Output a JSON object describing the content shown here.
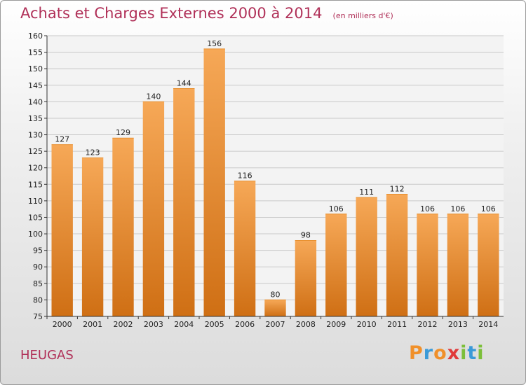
{
  "title": {
    "main": "Achats et Charges Externes 2000 à 2014",
    "sub": "(en milliers d'€)"
  },
  "commune": "HEUGAS",
  "logo": {
    "letters": [
      "P",
      "r",
      "o",
      "x",
      "i",
      "t",
      "i"
    ],
    "colors": [
      "#f0902a",
      "#3a9ad8",
      "#f0902a",
      "#e03a3a",
      "#7cbf3a",
      "#3a9ad8",
      "#7cbf3a"
    ]
  },
  "colors": {
    "bar_light": "#f6a857",
    "bar_dark": "#cf6f14",
    "grid": "#c9c9c9",
    "title": "#b03058"
  },
  "chart_data": {
    "type": "bar",
    "categories": [
      "2000",
      "2001",
      "2002",
      "2003",
      "2004",
      "2005",
      "2006",
      "2007",
      "2008",
      "2009",
      "2010",
      "2011",
      "2012",
      "2013",
      "2014"
    ],
    "values": [
      127,
      123,
      129,
      140,
      144,
      156,
      116,
      80,
      98,
      106,
      111,
      112,
      106,
      106,
      106
    ],
    "title": "Achats et Charges Externes 2000 à 2014",
    "xlabel": "",
    "ylabel": "",
    "ylim": [
      75,
      160
    ],
    "yticks": [
      75,
      80,
      85,
      90,
      95,
      100,
      105,
      110,
      115,
      120,
      125,
      130,
      135,
      140,
      145,
      150,
      155,
      160
    ],
    "grid": true
  }
}
